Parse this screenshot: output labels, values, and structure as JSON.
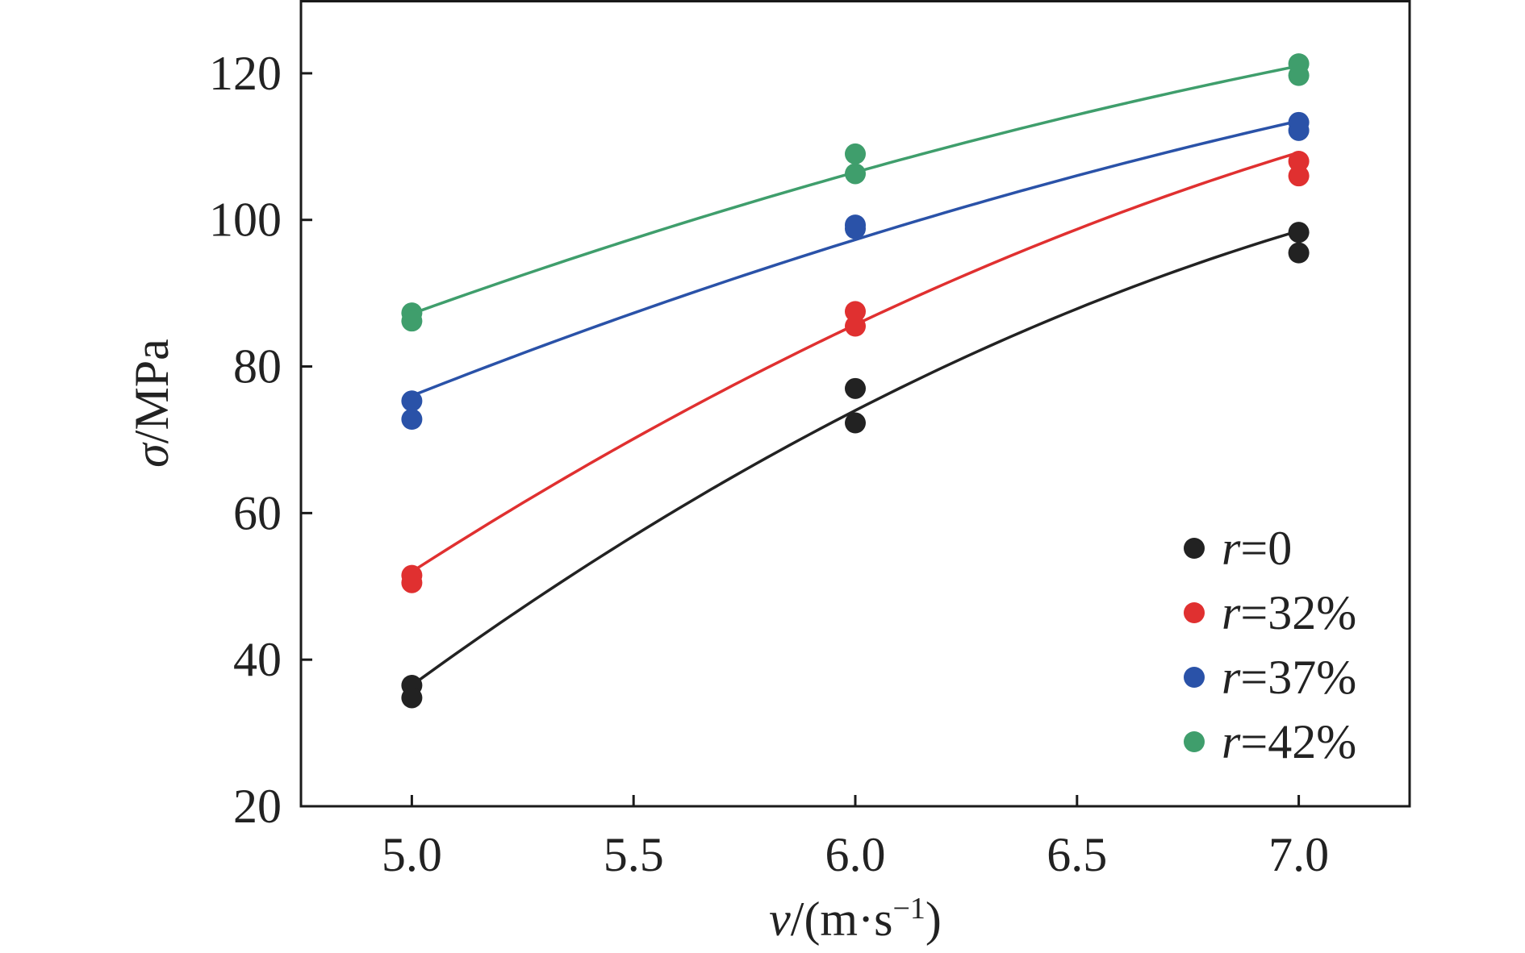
{
  "chart_data": {
    "type": "scatter",
    "title": "",
    "xlabel": {
      "symbol": "v",
      "unit": "/(m·s",
      "sup": "−1",
      "close": ")"
    },
    "ylabel": {
      "symbol": "σ",
      "unit": "/MPa"
    },
    "xlim": [
      4.75,
      7.25
    ],
    "ylim": [
      20,
      130
    ],
    "xticks": [
      5.0,
      5.5,
      6.0,
      6.5,
      7.0
    ],
    "xtick_labels": [
      "5.0",
      "5.5",
      "6.0",
      "6.5",
      "7.0"
    ],
    "yticks": [
      20,
      40,
      60,
      80,
      100,
      120
    ],
    "ytick_labels": [
      "20",
      "40",
      "60",
      "80",
      "100",
      "120"
    ],
    "legend_position": "lower-right",
    "grid": false,
    "series": [
      {
        "name": "r=0",
        "legend_symbol": "r",
        "legend_text": "=0",
        "color": "#222222",
        "points": [
          [
            5.0,
            36.5
          ],
          [
            5.0,
            34.8
          ],
          [
            6.0,
            77.0
          ],
          [
            6.0,
            72.3
          ],
          [
            7.0,
            98.3
          ],
          [
            7.0,
            95.5
          ]
        ],
        "fit": [
          [
            5.0,
            36.5
          ],
          [
            6.0,
            74.0
          ],
          [
            7.0,
            98.5
          ]
        ]
      },
      {
        "name": "r=32%",
        "legend_symbol": "r",
        "legend_text": "=32%",
        "color": "#e03030",
        "points": [
          [
            5.0,
            51.5
          ],
          [
            5.0,
            50.5
          ],
          [
            6.0,
            87.5
          ],
          [
            6.0,
            85.5
          ],
          [
            7.0,
            108.0
          ],
          [
            7.0,
            106.0
          ]
        ],
        "fit": [
          [
            5.0,
            52.0
          ],
          [
            6.0,
            85.7
          ],
          [
            7.0,
            109.2
          ]
        ]
      },
      {
        "name": "r=37%",
        "legend_symbol": "r",
        "legend_text": "=37%",
        "color": "#2a52a8",
        "points": [
          [
            5.0,
            75.3
          ],
          [
            5.0,
            72.8
          ],
          [
            6.0,
            99.3
          ],
          [
            6.0,
            98.8
          ],
          [
            7.0,
            113.3
          ],
          [
            7.0,
            112.2
          ]
        ],
        "fit": [
          [
            5.0,
            76.0
          ],
          [
            6.0,
            97.3
          ],
          [
            7.0,
            113.5
          ]
        ]
      },
      {
        "name": "r=42%",
        "legend_symbol": "r",
        "legend_text": "=42%",
        "color": "#3f9e6c",
        "points": [
          [
            5.0,
            87.3
          ],
          [
            5.0,
            86.2
          ],
          [
            6.0,
            109.0
          ],
          [
            6.0,
            106.3
          ],
          [
            7.0,
            121.3
          ],
          [
            7.0,
            119.7
          ]
        ],
        "fit": [
          [
            5.0,
            87.2
          ],
          [
            6.0,
            106.5
          ],
          [
            7.0,
            121.0
          ]
        ]
      }
    ]
  }
}
